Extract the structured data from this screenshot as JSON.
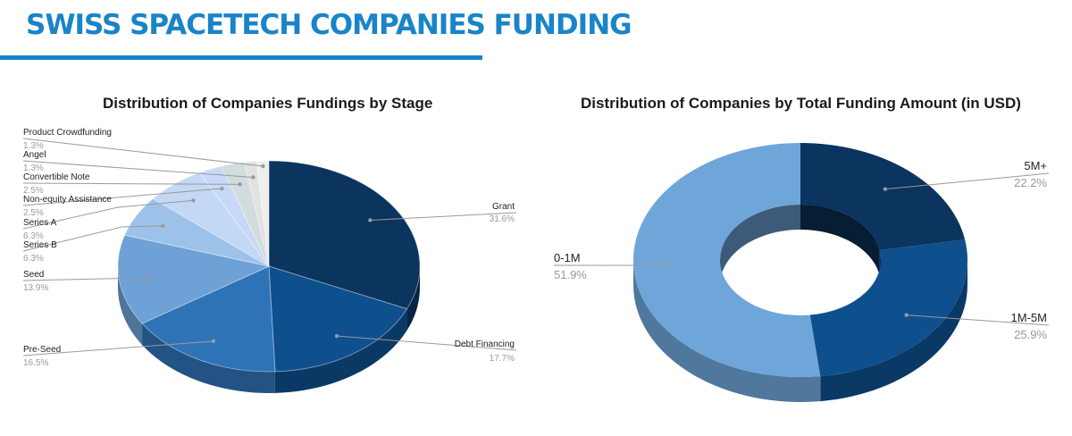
{
  "header": {
    "title": "SWISS SPACETECH COMPANIES FUNDING",
    "accent_color": "#1a84c8"
  },
  "chart_data": [
    {
      "type": "pie",
      "title": "Distribution of Companies Fundings by Stage",
      "legend": "none",
      "categories": [
        "Grant",
        "Debt Financing",
        "Pre-Seed",
        "Seed",
        "Series B",
        "Series A",
        "Non-equity Assistance",
        "Convertible Note",
        "Angel",
        "Product Crowdfunding"
      ],
      "values": [
        31.6,
        17.7,
        16.5,
        13.9,
        6.3,
        6.3,
        2.5,
        2.5,
        1.3,
        1.3
      ],
      "labels": [
        "31.6%",
        "17.7%",
        "16.5%",
        "13.9%",
        "6.3%",
        "6.3%",
        "2.5%",
        "2.5%",
        "1.3%",
        "1.3%"
      ],
      "colors": [
        "#0b345f",
        "#0e4f8e",
        "#2f73b7",
        "#6ea1d6",
        "#9dc2e9",
        "#c2d8f4",
        "#c8d9f7",
        "#d2dbde",
        "#e2e2e2",
        "#eeeeee"
      ]
    },
    {
      "type": "pie",
      "title": "Distribution of Companies by Total Funding Amount (in USD)",
      "legend": "none",
      "categories": [
        "5M+",
        "1M-5M",
        "0-1M"
      ],
      "values": [
        22.2,
        25.9,
        51.9
      ],
      "labels": [
        "22.2%",
        "25.9%",
        "51.9%"
      ],
      "colors": [
        "#0b345f",
        "#0e4f8e",
        "#6fa6da"
      ]
    }
  ]
}
